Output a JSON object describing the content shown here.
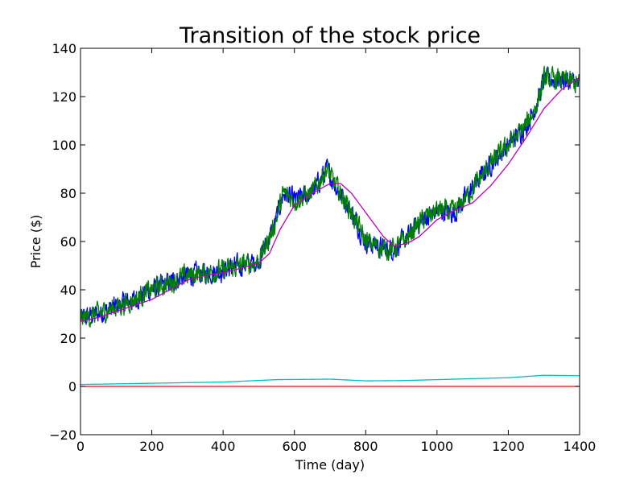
{
  "chart_data": {
    "type": "line",
    "title": "Transition of the stock price",
    "xlabel": "Time (day)",
    "ylabel": "Price ($)",
    "xlim": [
      0,
      1400
    ],
    "ylim": [
      -20,
      140
    ],
    "xticks": [
      0,
      200,
      400,
      600,
      800,
      1000,
      1200,
      1400
    ],
    "xtick_labels": [
      "0",
      "200",
      "400",
      "600",
      "800",
      "1000",
      "1200",
      "1400"
    ],
    "yticks": [
      -20,
      0,
      20,
      40,
      60,
      80,
      100,
      120,
      140
    ],
    "ytick_labels": [
      "−20",
      "0",
      "20",
      "40",
      "60",
      "80",
      "100",
      "120",
      "140"
    ],
    "grid": false,
    "legend": "none",
    "series": [
      {
        "color": "#0000ff",
        "style": "noisy",
        "x": [
          0,
          50,
          100,
          150,
          200,
          250,
          300,
          350,
          400,
          450,
          500,
          540,
          570,
          600,
          650,
          690,
          720,
          750,
          800,
          850,
          880,
          920,
          950,
          1000,
          1050,
          1100,
          1150,
          1200,
          1250,
          1280,
          1300,
          1350,
          1400
        ],
        "y": [
          28,
          30,
          33,
          36,
          40,
          43,
          46,
          47,
          48,
          50,
          52,
          65,
          80,
          77,
          80,
          90,
          82,
          75,
          60,
          57,
          57,
          62,
          68,
          73,
          72,
          82,
          92,
          100,
          108,
          117,
          127,
          127,
          125
        ]
      },
      {
        "color": "#008000",
        "style": "noisy",
        "x": [
          0,
          50,
          100,
          150,
          200,
          250,
          300,
          350,
          400,
          450,
          500,
          540,
          570,
          600,
          650,
          690,
          720,
          750,
          800,
          850,
          880,
          920,
          950,
          1000,
          1050,
          1100,
          1150,
          1200,
          1250,
          1280,
          1300,
          1350,
          1400
        ],
        "y": [
          28,
          30,
          33,
          36,
          40,
          43,
          46,
          47,
          48,
          50,
          52,
          65,
          80,
          77,
          80,
          90,
          82,
          75,
          60,
          57,
          57,
          62,
          68,
          73,
          72,
          82,
          92,
          100,
          108,
          117,
          127,
          127,
          125
        ]
      },
      {
        "color": "#ff0000",
        "style": "smooth",
        "x": [
          0,
          1400
        ],
        "y": [
          0,
          0
        ]
      },
      {
        "color": "#00bfbf",
        "style": "smooth",
        "x": [
          0,
          200,
          400,
          550,
          700,
          800,
          900,
          1000,
          1100,
          1200,
          1300,
          1400
        ],
        "y": [
          0.8,
          1.3,
          1.8,
          2.8,
          3.0,
          2.3,
          2.4,
          2.8,
          3.2,
          3.6,
          4.6,
          4.4
        ]
      },
      {
        "color": "#bf00bf",
        "style": "smooth",
        "x": [
          0,
          50,
          100,
          150,
          200,
          250,
          300,
          350,
          400,
          450,
          500,
          530,
          560,
          600,
          650,
          700,
          730,
          760,
          800,
          850,
          880,
          920,
          950,
          1000,
          1050,
          1100,
          1150,
          1200,
          1250,
          1300,
          1350,
          1400
        ],
        "y": [
          27,
          28.5,
          31,
          33.5,
          36,
          40,
          44,
          46,
          47,
          49,
          51,
          55,
          65,
          75,
          80,
          84,
          84,
          80,
          72,
          62,
          58,
          59.5,
          62,
          69,
          73,
          76,
          83,
          92,
          103,
          115,
          123,
          128
        ]
      }
    ]
  }
}
